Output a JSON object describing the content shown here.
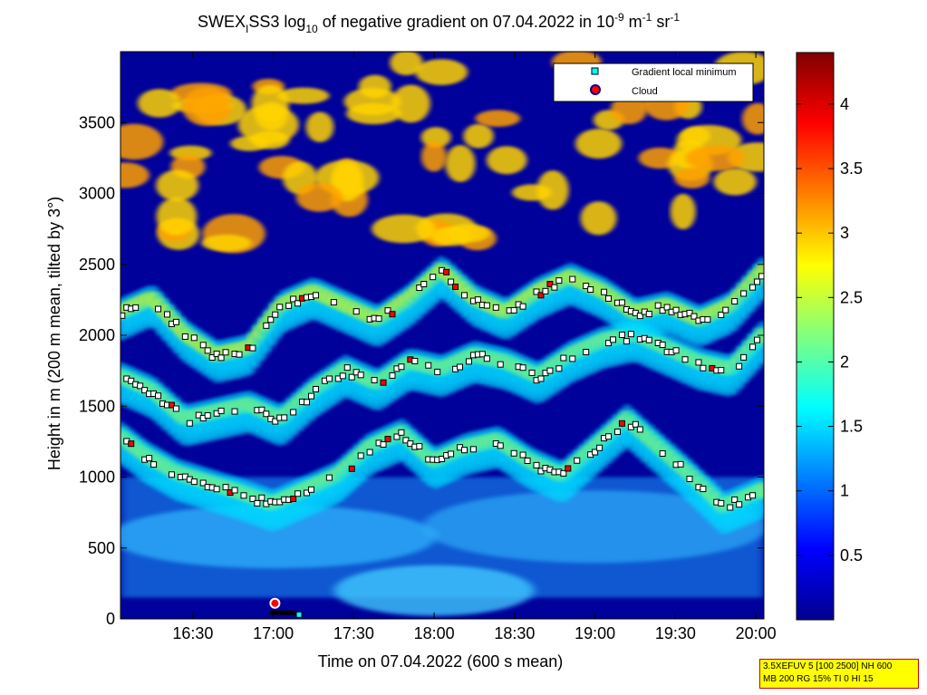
{
  "chart_data": {
    "type": "heatmap",
    "title_parts": {
      "a": "SWEX",
      "a_sub": "I",
      "b": "SS3 log",
      "b_sub": "10",
      "c": " of negative gradient on 07.04.2022 in 10",
      "c_sup": "-9",
      "d": " m",
      "d_sup": "-1",
      "e": " sr",
      "e_sup": "-1"
    },
    "xlabel": "Time on 07.04.2022 (600 s mean)",
    "ylabel": "Height in m (200 m mean, tilted by 3°)",
    "x_ticks": [
      "16:30",
      "17:00",
      "17:30",
      "18:00",
      "18:30",
      "19:00",
      "19:30",
      "20:00"
    ],
    "x_tick_hours": [
      16.5,
      17.0,
      17.5,
      18.0,
      18.5,
      19.0,
      19.5,
      20.0
    ],
    "xlim": [
      16.05,
      20.05
    ],
    "y_ticks": [
      "0",
      "500",
      "1000",
      "1500",
      "2000",
      "2500",
      "3000",
      "3500"
    ],
    "y_tick_values": [
      0,
      500,
      1000,
      1500,
      2000,
      2500,
      3000,
      3500
    ],
    "ylim": [
      0,
      4000
    ],
    "colorbar": {
      "ticks": [
        "0.5",
        "1",
        "1.5",
        "2",
        "2.5",
        "3",
        "3.5",
        "4"
      ],
      "tick_values": [
        0.5,
        1,
        1.5,
        2,
        2.5,
        3,
        3.5,
        4
      ],
      "range": [
        0,
        4.4
      ],
      "colormap": "jet"
    },
    "legend": {
      "placement": "top-right",
      "entries": [
        {
          "label": "Gradient local minimum",
          "marker": "square",
          "color": "#00ffff"
        },
        {
          "label": "Cloud",
          "marker": "circle",
          "color": "#ff0000"
        }
      ]
    },
    "cloud_points": [
      {
        "time": 17.01,
        "height": 110
      }
    ],
    "layers": [
      {
        "name": "lower",
        "points": [
          [
            16.05,
            1280
          ],
          [
            16.2,
            1150
          ],
          [
            16.4,
            1020
          ],
          [
            16.6,
            950
          ],
          [
            16.8,
            880
          ],
          [
            17.0,
            800
          ],
          [
            17.2,
            900
          ],
          [
            17.4,
            1000
          ],
          [
            17.6,
            1200
          ],
          [
            17.8,
            1300
          ],
          [
            18.0,
            1100
          ],
          [
            18.2,
            1200
          ],
          [
            18.4,
            1250
          ],
          [
            18.6,
            1100
          ],
          [
            18.8,
            1000
          ],
          [
            19.0,
            1200
          ],
          [
            19.2,
            1400
          ],
          [
            19.4,
            1200
          ],
          [
            19.6,
            1000
          ],
          [
            19.8,
            780
          ],
          [
            20.05,
            900
          ]
        ]
      },
      {
        "name": "middle",
        "points": [
          [
            16.05,
            1700
          ],
          [
            16.25,
            1600
          ],
          [
            16.45,
            1400
          ],
          [
            16.65,
            1450
          ],
          [
            16.85,
            1500
          ],
          [
            17.05,
            1400
          ],
          [
            17.25,
            1600
          ],
          [
            17.45,
            1750
          ],
          [
            17.65,
            1650
          ],
          [
            17.85,
            1800
          ],
          [
            18.05,
            1750
          ],
          [
            18.25,
            1850
          ],
          [
            18.45,
            1800
          ],
          [
            18.65,
            1700
          ],
          [
            18.85,
            1850
          ],
          [
            19.05,
            1950
          ],
          [
            19.25,
            2000
          ],
          [
            19.45,
            1900
          ],
          [
            19.65,
            1800
          ],
          [
            19.85,
            1750
          ],
          [
            20.05,
            2000
          ]
        ]
      },
      {
        "name": "upper",
        "points": [
          [
            16.05,
            2150
          ],
          [
            16.25,
            2250
          ],
          [
            16.45,
            2000
          ],
          [
            16.65,
            1850
          ],
          [
            16.85,
            1900
          ],
          [
            17.05,
            2200
          ],
          [
            17.25,
            2300
          ],
          [
            17.45,
            2200
          ],
          [
            17.65,
            2100
          ],
          [
            17.85,
            2250
          ],
          [
            18.05,
            2450
          ],
          [
            18.25,
            2250
          ],
          [
            18.45,
            2150
          ],
          [
            18.65,
            2300
          ],
          [
            18.85,
            2400
          ],
          [
            19.05,
            2300
          ],
          [
            19.25,
            2150
          ],
          [
            19.45,
            2200
          ],
          [
            19.65,
            2100
          ],
          [
            19.85,
            2200
          ],
          [
            20.05,
            2450
          ]
        ]
      }
    ]
  },
  "note_box": {
    "line1": "3.5XEFUV 5 [100 2500] NH 600",
    "line2": "MB 200 RG 15% TI 0 HI 15"
  }
}
